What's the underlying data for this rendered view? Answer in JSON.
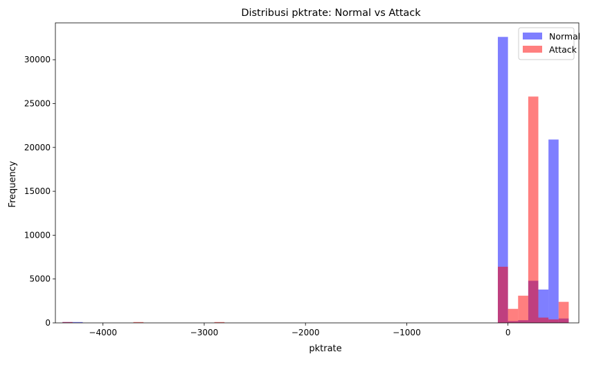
{
  "chart_data": {
    "type": "histogram",
    "title": "Distribusi pktrate: Normal vs Attack",
    "xlabel": "pktrate",
    "ylabel": "Frequency",
    "xlim": [
      -4470,
      700
    ],
    "ylim": [
      0,
      34200
    ],
    "xticks": [
      -4000,
      -3000,
      -2000,
      -1000,
      0
    ],
    "yticks": [
      0,
      5000,
      10000,
      15000,
      20000,
      25000,
      30000
    ],
    "grid": false,
    "legend": "top-right",
    "bin_start": -4350,
    "bin_width": 100,
    "series": [
      {
        "name": "Normal",
        "color": "#0000ff",
        "alpha": 0.5,
        "values": [
          [
            -4350,
            5
          ],
          [
            -4250,
            5
          ],
          [
            -50,
            32600
          ],
          [
            50,
            200
          ],
          [
            150,
            300
          ],
          [
            250,
            4800
          ],
          [
            350,
            3800
          ],
          [
            450,
            20900
          ],
          [
            550,
            500
          ]
        ]
      },
      {
        "name": "Attack",
        "color": "#ff0000",
        "alpha": 0.5,
        "values": [
          [
            -4350,
            20
          ],
          [
            -3650,
            60
          ],
          [
            -2850,
            40
          ],
          [
            -50,
            6400
          ],
          [
            50,
            1600
          ],
          [
            150,
            3100
          ],
          [
            250,
            25800
          ],
          [
            350,
            600
          ],
          [
            450,
            400
          ],
          [
            550,
            2400
          ]
        ]
      }
    ]
  }
}
